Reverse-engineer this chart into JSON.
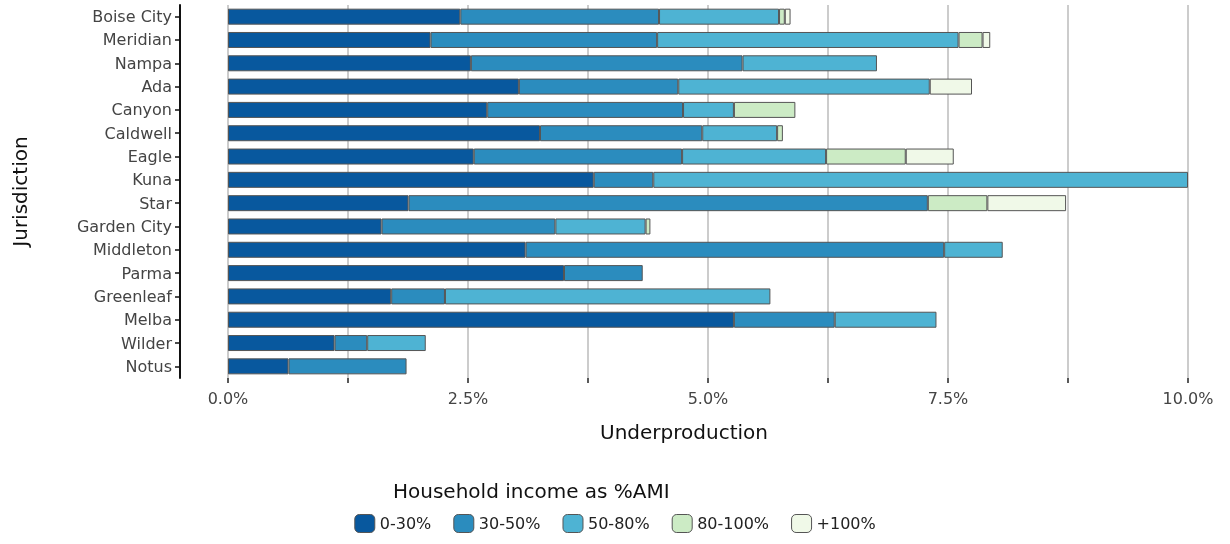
{
  "chart_data": {
    "type": "bar",
    "orientation": "horizontal",
    "stacked": true,
    "xlabel": "Underproduction",
    "ylabel": "Jurisdiction",
    "legend_title": "Household income as %AMI",
    "categories": [
      "Boise City",
      "Meridian",
      "Nampa",
      "Ada",
      "Canyon",
      "Caldwell",
      "Eagle",
      "Kuna",
      "Star",
      "Garden City",
      "Middleton",
      "Parma",
      "Greenleaf",
      "Melba",
      "Wilder",
      "Notus"
    ],
    "series": [
      {
        "name": "0-30%",
        "color": "#08589e",
        "values": [
          2.42,
          2.11,
          2.53,
          3.03,
          2.7,
          3.25,
          2.56,
          3.81,
          1.88,
          1.6,
          3.1,
          3.5,
          1.7,
          5.27,
          1.11,
          0.63
        ]
      },
      {
        "name": "30-50%",
        "color": "#2b8cbe",
        "values": [
          2.07,
          2.36,
          2.83,
          1.66,
          2.04,
          1.69,
          2.17,
          0.62,
          5.41,
          1.81,
          4.36,
          0.82,
          0.56,
          1.05,
          0.34,
          1.23
        ]
      },
      {
        "name": "50-80%",
        "color": "#4eb3d3",
        "values": [
          1.25,
          3.14,
          1.4,
          2.62,
          0.53,
          0.78,
          1.5,
          5.57,
          null,
          0.94,
          0.61,
          null,
          3.39,
          1.06,
          0.61,
          null
        ]
      },
      {
        "name": "80-100%",
        "color": "#ccebc5",
        "values": [
          0.06,
          0.25,
          null,
          null,
          0.64,
          0.06,
          0.83,
          null,
          0.62,
          0.05,
          null,
          null,
          null,
          null,
          null,
          null
        ]
      },
      {
        "name": "+100%",
        "color": "#f0f9e8",
        "values": [
          0.06,
          0.08,
          null,
          0.44,
          null,
          null,
          0.5,
          null,
          0.82,
          null,
          null,
          null,
          null,
          null,
          null,
          null
        ]
      }
    ],
    "xlim": [
      -0.5,
      10.0
    ],
    "xticks": [
      {
        "value": 0,
        "label": "0.0%"
      },
      {
        "value": 1.25,
        "label": null
      },
      {
        "value": 2.5,
        "label": "2.5%"
      },
      {
        "value": 3.75,
        "label": null
      },
      {
        "value": 5,
        "label": "5.0%"
      },
      {
        "value": 6.25,
        "label": null
      },
      {
        "value": 7.5,
        "label": "7.5%"
      },
      {
        "value": 8.75,
        "label": null
      },
      {
        "value": 10,
        "label": "10.0%"
      }
    ],
    "grid": "x",
    "legend": "bottom"
  }
}
